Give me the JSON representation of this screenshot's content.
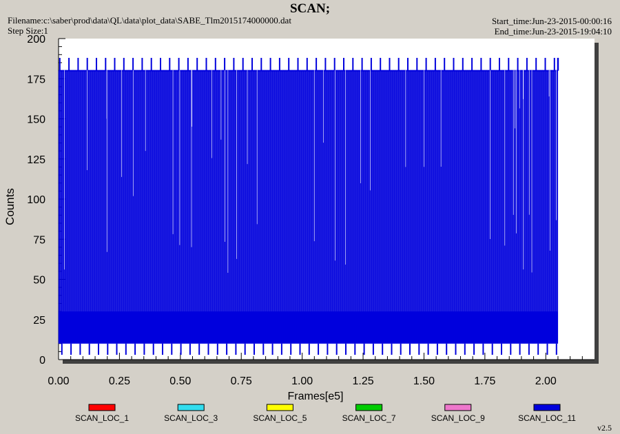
{
  "header": {
    "title": "SCAN;",
    "filename": "Filename:c:\\saber\\prod\\data\\QL\\data\\plot_data\\SABE_Tlm2015174000000.dat",
    "step_size": "Step Size:1",
    "start_time": "Start_time:Jun-23-2015-00:00:16",
    "end_time": "End_time:Jun-23-2015-19:04:10"
  },
  "version": "v2.5",
  "colors": {
    "background": "#d4d0c8",
    "plot_background": "#ffffff",
    "shadow": "#404040"
  },
  "chart_data": {
    "type": "line",
    "title": "SCAN;",
    "xlabel": "Frames[e5]",
    "ylabel": "Counts",
    "xlim": [
      0,
      2.2
    ],
    "ylim": [
      0,
      200
    ],
    "x_ticks": [
      "0.00",
      "0.25",
      "0.50",
      "0.75",
      "1.00",
      "1.25",
      "1.50",
      "1.75",
      "2.00"
    ],
    "y_ticks": [
      "0",
      "25",
      "50",
      "75",
      "100",
      "125",
      "150",
      "175",
      "200"
    ],
    "grid": false,
    "legend_position": "bottom",
    "series": [
      {
        "name": "SCAN_LOC_1",
        "color": "#ff0000"
      },
      {
        "name": "SCAN_LOC_3",
        "color": "#33ddee"
      },
      {
        "name": "SCAN_LOC_5",
        "color": "#ffff00"
      },
      {
        "name": "SCAN_LOC_7",
        "color": "#00cc00"
      },
      {
        "name": "SCAN_LOC_9",
        "color": "#ee77cc"
      },
      {
        "name": "SCAN_LOC_11",
        "color": "#0000dd",
        "x_range": [
          0.0,
          2.05
        ],
        "noise_band": [
          10,
          30
        ],
        "plateau_level": 180,
        "peak_level": 188,
        "trough_level": 3,
        "scan_period": 0.0376
      }
    ]
  }
}
